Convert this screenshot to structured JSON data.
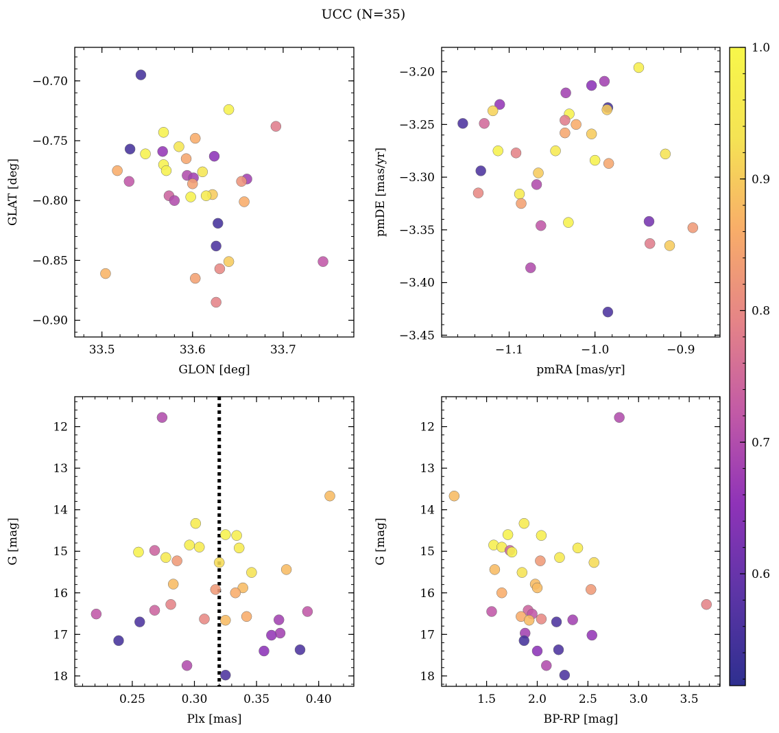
{
  "figure": {
    "suptitle": "UCC (N=35)",
    "colorbar": {
      "range": [
        0.515,
        1.0
      ],
      "ticks": [
        0.6,
        0.7,
        0.8,
        0.9,
        1.0
      ],
      "tick_labels": [
        "0.6",
        "0.7",
        "0.8",
        "0.9",
        "1.0"
      ],
      "colormap": "plasma",
      "stops": [
        "#2e2f8f",
        "#5c35a6",
        "#8f33b8",
        "#c25aa6",
        "#e58487",
        "#f8ad69",
        "#f5e354",
        "#f7f74a"
      ]
    }
  },
  "chart_data": [
    {
      "type": "scatter",
      "name": "panel-glon-glat",
      "xlabel": "GLON [deg]",
      "ylabel": "GLAT [deg]",
      "xlim": [
        33.47,
        33.778
      ],
      "ylim": [
        -0.914,
        -0.672
      ],
      "y_inverted": false,
      "xticks": [
        33.5,
        33.6,
        33.7
      ],
      "xtick_labels": [
        "33.5",
        "33.6",
        "33.7"
      ],
      "yticks": [
        -0.7,
        -0.75,
        -0.8,
        -0.85,
        -0.9
      ],
      "ytick_labels": [
        "−0.70",
        "−0.75",
        "−0.80",
        "−0.85",
        "−0.90"
      ],
      "points": [
        {
          "x": 33.543,
          "y": -0.695,
          "c": 0.55
        },
        {
          "x": 33.64,
          "y": -0.724,
          "c": 0.98
        },
        {
          "x": 33.692,
          "y": -0.738,
          "c": 0.78
        },
        {
          "x": 33.568,
          "y": -0.743,
          "c": 0.98
        },
        {
          "x": 33.603,
          "y": -0.748,
          "c": 0.86
        },
        {
          "x": 33.585,
          "y": -0.755,
          "c": 0.94
        },
        {
          "x": 33.531,
          "y": -0.757,
          "c": 0.55
        },
        {
          "x": 33.567,
          "y": -0.759,
          "c": 0.66
        },
        {
          "x": 33.548,
          "y": -0.761,
          "c": 0.98
        },
        {
          "x": 33.624,
          "y": -0.763,
          "c": 0.65
        },
        {
          "x": 33.593,
          "y": -0.765,
          "c": 0.85
        },
        {
          "x": 33.568,
          "y": -0.77,
          "c": 0.98
        },
        {
          "x": 33.571,
          "y": -0.775,
          "c": 0.98
        },
        {
          "x": 33.517,
          "y": -0.775,
          "c": 0.86
        },
        {
          "x": 33.611,
          "y": -0.776,
          "c": 0.94
        },
        {
          "x": 33.594,
          "y": -0.779,
          "c": 0.7
        },
        {
          "x": 33.601,
          "y": -0.781,
          "c": 0.68
        },
        {
          "x": 33.66,
          "y": -0.782,
          "c": 0.68
        },
        {
          "x": 33.6,
          "y": -0.786,
          "c": 0.84
        },
        {
          "x": 33.53,
          "y": -0.784,
          "c": 0.72
        },
        {
          "x": 33.654,
          "y": -0.784,
          "c": 0.82
        },
        {
          "x": 33.574,
          "y": -0.796,
          "c": 0.74
        },
        {
          "x": 33.622,
          "y": -0.795,
          "c": 0.9
        },
        {
          "x": 33.615,
          "y": -0.796,
          "c": 0.96
        },
        {
          "x": 33.598,
          "y": -0.797,
          "c": 0.98
        },
        {
          "x": 33.58,
          "y": -0.8,
          "c": 0.7
        },
        {
          "x": 33.657,
          "y": -0.801,
          "c": 0.86
        },
        {
          "x": 33.628,
          "y": -0.819,
          "c": 0.55
        },
        {
          "x": 33.626,
          "y": -0.838,
          "c": 0.56
        },
        {
          "x": 33.64,
          "y": -0.851,
          "c": 0.9
        },
        {
          "x": 33.744,
          "y": -0.851,
          "c": 0.72
        },
        {
          "x": 33.63,
          "y": -0.857,
          "c": 0.8
        },
        {
          "x": 33.504,
          "y": -0.861,
          "c": 0.87
        },
        {
          "x": 33.603,
          "y": -0.865,
          "c": 0.84
        },
        {
          "x": 33.626,
          "y": -0.885,
          "c": 0.79
        }
      ]
    },
    {
      "type": "scatter",
      "name": "panel-pmra-pmde",
      "xlabel": "pmRA [mas/yr]",
      "ylabel": "pmDE [mas/yr]",
      "xlim": [
        -1.1787,
        -0.8543
      ],
      "ylim": [
        -3.4517,
        -3.1768
      ],
      "y_inverted": false,
      "xticks": [
        -1.1,
        -1.0,
        -0.9
      ],
      "xtick_labels": [
        "−1.1",
        "−1.0",
        "−0.9"
      ],
      "yticks": [
        -3.2,
        -3.25,
        -3.3,
        -3.35,
        -3.4,
        -3.45
      ],
      "ytick_labels": [
        "−3.20",
        "−3.25",
        "−3.30",
        "−3.35",
        "−3.40",
        "−3.45"
      ],
      "points": [
        {
          "x": -0.949,
          "y": -3.196,
          "c": 0.97
        },
        {
          "x": -1.004,
          "y": -3.213,
          "c": 0.65
        },
        {
          "x": -0.989,
          "y": -3.209,
          "c": 0.68
        },
        {
          "x": -1.034,
          "y": -3.22,
          "c": 0.68
        },
        {
          "x": -1.111,
          "y": -3.231,
          "c": 0.66
        },
        {
          "x": -0.985,
          "y": -3.234,
          "c": 0.55
        },
        {
          "x": -0.986,
          "y": -3.236,
          "c": 0.9
        },
        {
          "x": -1.119,
          "y": -3.237,
          "c": 0.91
        },
        {
          "x": -1.03,
          "y": -3.24,
          "c": 0.98
        },
        {
          "x": -1.035,
          "y": -3.246,
          "c": 0.78
        },
        {
          "x": -1.154,
          "y": -3.249,
          "c": 0.56
        },
        {
          "x": -1.129,
          "y": -3.249,
          "c": 0.75
        },
        {
          "x": -1.022,
          "y": -3.25,
          "c": 0.86
        },
        {
          "x": -1.035,
          "y": -3.258,
          "c": 0.85
        },
        {
          "x": -1.004,
          "y": -3.259,
          "c": 0.9
        },
        {
          "x": -1.113,
          "y": -3.275,
          "c": 0.98
        },
        {
          "x": -1.046,
          "y": -3.275,
          "c": 0.95
        },
        {
          "x": -1.092,
          "y": -3.277,
          "c": 0.79
        },
        {
          "x": -0.918,
          "y": -3.278,
          "c": 0.93
        },
        {
          "x": -1.0,
          "y": -3.284,
          "c": 0.98
        },
        {
          "x": -0.984,
          "y": -3.287,
          "c": 0.85
        },
        {
          "x": -1.133,
          "y": -3.294,
          "c": 0.56
        },
        {
          "x": -1.066,
          "y": -3.296,
          "c": 0.9
        },
        {
          "x": -1.068,
          "y": -3.307,
          "c": 0.7
        },
        {
          "x": -1.136,
          "y": -3.315,
          "c": 0.8
        },
        {
          "x": -1.088,
          "y": -3.316,
          "c": 0.96
        },
        {
          "x": -1.086,
          "y": -3.325,
          "c": 0.84
        },
        {
          "x": -0.937,
          "y": -3.342,
          "c": 0.62
        },
        {
          "x": -1.031,
          "y": -3.343,
          "c": 0.98
        },
        {
          "x": -1.063,
          "y": -3.346,
          "c": 0.72
        },
        {
          "x": -0.886,
          "y": -3.348,
          "c": 0.83
        },
        {
          "x": -0.936,
          "y": -3.363,
          "c": 0.78
        },
        {
          "x": -0.913,
          "y": -3.365,
          "c": 0.9
        },
        {
          "x": -1.075,
          "y": -3.386,
          "c": 0.7
        },
        {
          "x": -0.985,
          "y": -3.428,
          "c": 0.56
        }
      ]
    },
    {
      "type": "scatter",
      "name": "panel-plx-g",
      "xlabel": "Plx [mas]",
      "ylabel": "G [mag]",
      "xlim": [
        0.2037,
        0.4283
      ],
      "ylim": [
        18.25,
        11.28
      ],
      "y_inverted": true,
      "xticks": [
        0.25,
        0.3,
        0.35,
        0.4
      ],
      "xtick_labels": [
        "0.25",
        "0.30",
        "0.35",
        "0.40"
      ],
      "yticks": [
        12,
        13,
        14,
        15,
        16,
        17,
        18
      ],
      "ytick_labels": [
        "12",
        "13",
        "14",
        "15",
        "16",
        "17",
        "18"
      ],
      "vline": {
        "x": 0.32,
        "style": "dotted",
        "color": "#000000"
      },
      "points": [
        {
          "x": 0.274,
          "y": 11.78,
          "c": 0.7
        },
        {
          "x": 0.409,
          "y": 13.67,
          "c": 0.88
        },
        {
          "x": 0.301,
          "y": 14.33,
          "c": 0.96
        },
        {
          "x": 0.325,
          "y": 14.6,
          "c": 0.98
        },
        {
          "x": 0.334,
          "y": 14.62,
          "c": 0.97
        },
        {
          "x": 0.296,
          "y": 14.85,
          "c": 0.97
        },
        {
          "x": 0.304,
          "y": 14.9,
          "c": 0.96
        },
        {
          "x": 0.336,
          "y": 14.92,
          "c": 0.96
        },
        {
          "x": 0.268,
          "y": 14.98,
          "c": 0.74
        },
        {
          "x": 0.255,
          "y": 15.02,
          "c": 0.98
        },
        {
          "x": 0.277,
          "y": 15.15,
          "c": 0.95
        },
        {
          "x": 0.286,
          "y": 15.23,
          "c": 0.83
        },
        {
          "x": 0.32,
          "y": 15.27,
          "c": 0.92
        },
        {
          "x": 0.374,
          "y": 15.44,
          "c": 0.88
        },
        {
          "x": 0.346,
          "y": 15.51,
          "c": 0.93
        },
        {
          "x": 0.283,
          "y": 15.79,
          "c": 0.88
        },
        {
          "x": 0.339,
          "y": 15.88,
          "c": 0.88
        },
        {
          "x": 0.317,
          "y": 15.92,
          "c": 0.83
        },
        {
          "x": 0.333,
          "y": 16.0,
          "c": 0.86
        },
        {
          "x": 0.281,
          "y": 16.28,
          "c": 0.79
        },
        {
          "x": 0.268,
          "y": 16.42,
          "c": 0.74
        },
        {
          "x": 0.391,
          "y": 16.45,
          "c": 0.72
        },
        {
          "x": 0.221,
          "y": 16.51,
          "c": 0.72
        },
        {
          "x": 0.342,
          "y": 16.57,
          "c": 0.86
        },
        {
          "x": 0.308,
          "y": 16.63,
          "c": 0.8
        },
        {
          "x": 0.368,
          "y": 16.65,
          "c": 0.68
        },
        {
          "x": 0.325,
          "y": 16.66,
          "c": 0.88
        },
        {
          "x": 0.256,
          "y": 16.7,
          "c": 0.56
        },
        {
          "x": 0.369,
          "y": 16.97,
          "c": 0.68
        },
        {
          "x": 0.362,
          "y": 17.02,
          "c": 0.66
        },
        {
          "x": 0.239,
          "y": 17.15,
          "c": 0.55
        },
        {
          "x": 0.385,
          "y": 17.37,
          "c": 0.56
        },
        {
          "x": 0.356,
          "y": 17.4,
          "c": 0.65
        },
        {
          "x": 0.294,
          "y": 17.75,
          "c": 0.7
        },
        {
          "x": 0.325,
          "y": 17.98,
          "c": 0.56
        }
      ]
    },
    {
      "type": "scatter",
      "name": "panel-bprp-g",
      "xlabel": "BP-RP [mag]",
      "ylabel": "G [mag]",
      "xlim": [
        1.056,
        3.804
      ],
      "ylim": [
        18.25,
        11.28
      ],
      "y_inverted": true,
      "xticks": [
        1.5,
        2.0,
        2.5,
        3.0,
        3.5
      ],
      "xtick_labels": [
        "1.5",
        "2.0",
        "2.5",
        "3.0",
        "3.5"
      ],
      "yticks": [
        12,
        13,
        14,
        15,
        16,
        17,
        18
      ],
      "ytick_labels": [
        "12",
        "13",
        "14",
        "15",
        "16",
        "17",
        "18"
      ],
      "points": [
        {
          "x": 2.81,
          "y": 11.78,
          "c": 0.7
        },
        {
          "x": 1.18,
          "y": 13.67,
          "c": 0.88
        },
        {
          "x": 1.87,
          "y": 14.33,
          "c": 0.96
        },
        {
          "x": 2.04,
          "y": 14.62,
          "c": 0.97
        },
        {
          "x": 1.71,
          "y": 14.6,
          "c": 0.98
        },
        {
          "x": 1.57,
          "y": 14.85,
          "c": 0.97
        },
        {
          "x": 1.65,
          "y": 14.9,
          "c": 0.96
        },
        {
          "x": 2.4,
          "y": 14.92,
          "c": 0.96
        },
        {
          "x": 1.73,
          "y": 14.98,
          "c": 0.74
        },
        {
          "x": 1.75,
          "y": 15.02,
          "c": 0.98
        },
        {
          "x": 2.22,
          "y": 15.15,
          "c": 0.95
        },
        {
          "x": 2.03,
          "y": 15.23,
          "c": 0.83
        },
        {
          "x": 2.56,
          "y": 15.27,
          "c": 0.92
        },
        {
          "x": 1.58,
          "y": 15.44,
          "c": 0.88
        },
        {
          "x": 1.85,
          "y": 15.51,
          "c": 0.93
        },
        {
          "x": 1.98,
          "y": 15.79,
          "c": 0.88
        },
        {
          "x": 2.0,
          "y": 15.88,
          "c": 0.88
        },
        {
          "x": 2.53,
          "y": 15.92,
          "c": 0.83
        },
        {
          "x": 1.65,
          "y": 16.0,
          "c": 0.86
        },
        {
          "x": 3.67,
          "y": 16.28,
          "c": 0.79
        },
        {
          "x": 1.91,
          "y": 16.42,
          "c": 0.74
        },
        {
          "x": 1.55,
          "y": 16.45,
          "c": 0.72
        },
        {
          "x": 1.95,
          "y": 16.51,
          "c": 0.72
        },
        {
          "x": 1.84,
          "y": 16.57,
          "c": 0.86
        },
        {
          "x": 2.04,
          "y": 16.63,
          "c": 0.8
        },
        {
          "x": 2.35,
          "y": 16.65,
          "c": 0.68
        },
        {
          "x": 1.92,
          "y": 16.66,
          "c": 0.88
        },
        {
          "x": 2.19,
          "y": 16.7,
          "c": 0.56
        },
        {
          "x": 1.88,
          "y": 16.97,
          "c": 0.68
        },
        {
          "x": 2.54,
          "y": 17.02,
          "c": 0.66
        },
        {
          "x": 1.87,
          "y": 17.15,
          "c": 0.55
        },
        {
          "x": 2.21,
          "y": 17.37,
          "c": 0.56
        },
        {
          "x": 2.0,
          "y": 17.4,
          "c": 0.65
        },
        {
          "x": 2.09,
          "y": 17.75,
          "c": 0.7
        },
        {
          "x": 2.27,
          "y": 17.98,
          "c": 0.56
        }
      ]
    }
  ]
}
